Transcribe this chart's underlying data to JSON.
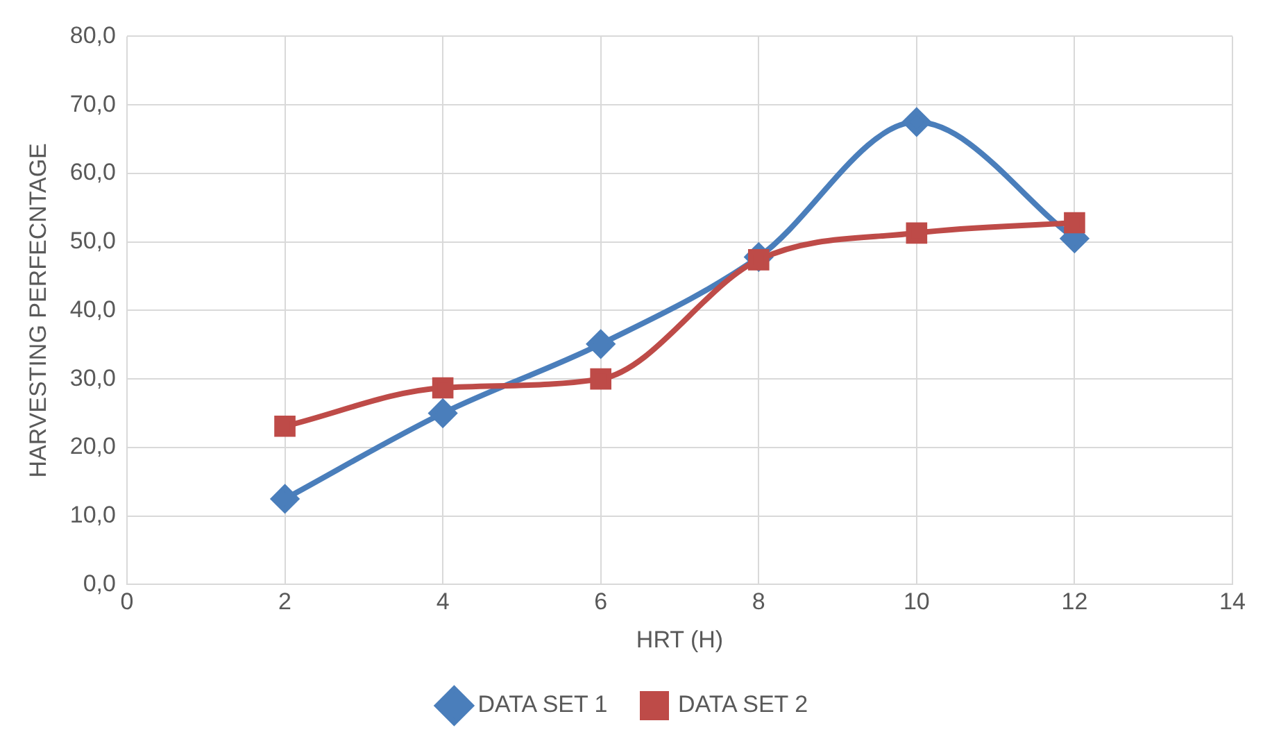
{
  "chart_data": {
    "type": "line",
    "xlabel": "HRT (H)",
    "ylabel": "HARVESTING PERFECNTAGE",
    "x": [
      2,
      4,
      6,
      8,
      10,
      12
    ],
    "series": [
      {
        "name": "DATA SET 1",
        "color": "#4a7ebb",
        "marker": "diamond",
        "values": [
          12.5,
          25.0,
          35.1,
          47.8,
          67.5,
          50.5
        ]
      },
      {
        "name": "DATA SET 2",
        "color": "#be4b48",
        "marker": "square",
        "values": [
          23.1,
          28.7,
          30.0,
          47.4,
          51.3,
          52.8
        ]
      }
    ],
    "xlim": [
      0,
      14
    ],
    "xticks": [
      0,
      2,
      4,
      6,
      8,
      10,
      12,
      14
    ],
    "ylim": [
      0,
      80
    ],
    "yticks": [
      {
        "value": 0,
        "label": "0,0"
      },
      {
        "value": 10,
        "label": "10,0"
      },
      {
        "value": 20,
        "label": "20,0"
      },
      {
        "value": 30,
        "label": "30,0"
      },
      {
        "value": 40,
        "label": "40,0"
      },
      {
        "value": 50,
        "label": "50,0"
      },
      {
        "value": 60,
        "label": "60,0"
      },
      {
        "value": 70,
        "label": "70,0"
      },
      {
        "value": 80,
        "label": "80,0"
      }
    ],
    "grid": true,
    "legend": "bottom",
    "line_style": "solid"
  }
}
